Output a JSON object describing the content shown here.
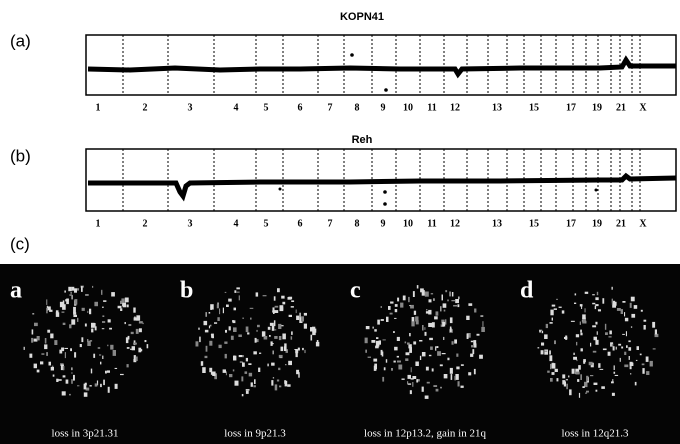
{
  "panels": [
    {
      "label": "(a)",
      "title": "KOPN41",
      "chromosomes": [
        "1",
        "2",
        "3",
        "4",
        "5",
        "6",
        "7",
        "8",
        "9",
        "10",
        "11",
        "12",
        "13",
        "15",
        "17",
        "19",
        "21",
        "X"
      ]
    },
    {
      "label": "(b)",
      "title": "Reh",
      "chromosomes": [
        "1",
        "2",
        "3",
        "4",
        "5",
        "6",
        "7",
        "8",
        "9",
        "10",
        "11",
        "12",
        "13",
        "15",
        "17",
        "19",
        "21",
        "X"
      ]
    }
  ],
  "figure_c": {
    "label": "(c)",
    "images": [
      {
        "letter": "a",
        "caption": "loss in 3p21.31"
      },
      {
        "letter": "b",
        "caption": "loss in 9p21.3"
      },
      {
        "letter": "c",
        "caption": "loss in 12p13.2, gain in 21q"
      },
      {
        "letter": "d",
        "caption": "loss in 12q21.3"
      }
    ]
  }
}
